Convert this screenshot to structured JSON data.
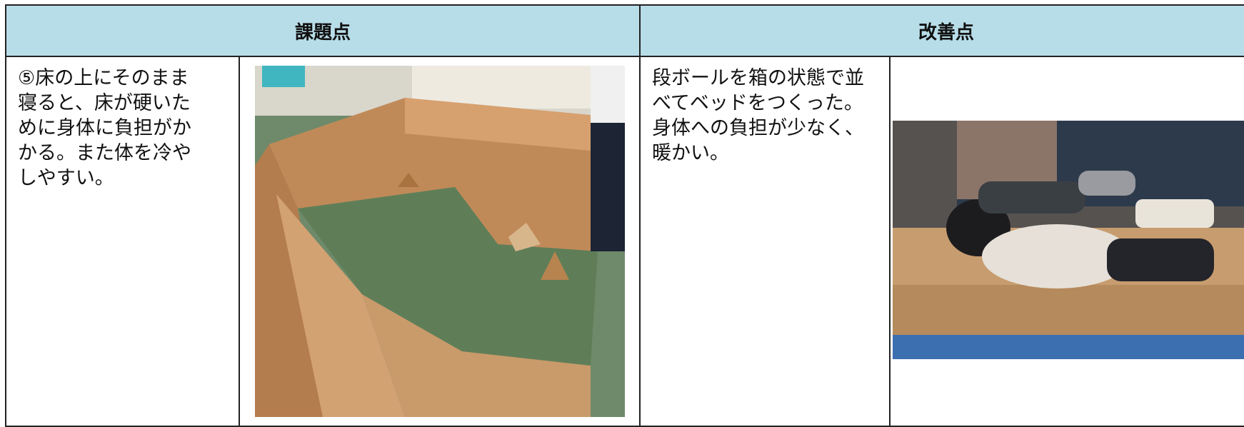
{
  "table": {
    "headers": [
      "課題点",
      "改善点"
    ],
    "rows": [
      [
        "⑤床の上にそのまま寝ると、床が硬いために身体に負担がかかる。また体を冷やしやすい。",
        "段ボールを箱の状態で並べてベッドをつくった。身体への負担が少なく、暖かい。"
      ]
    ]
  }
}
